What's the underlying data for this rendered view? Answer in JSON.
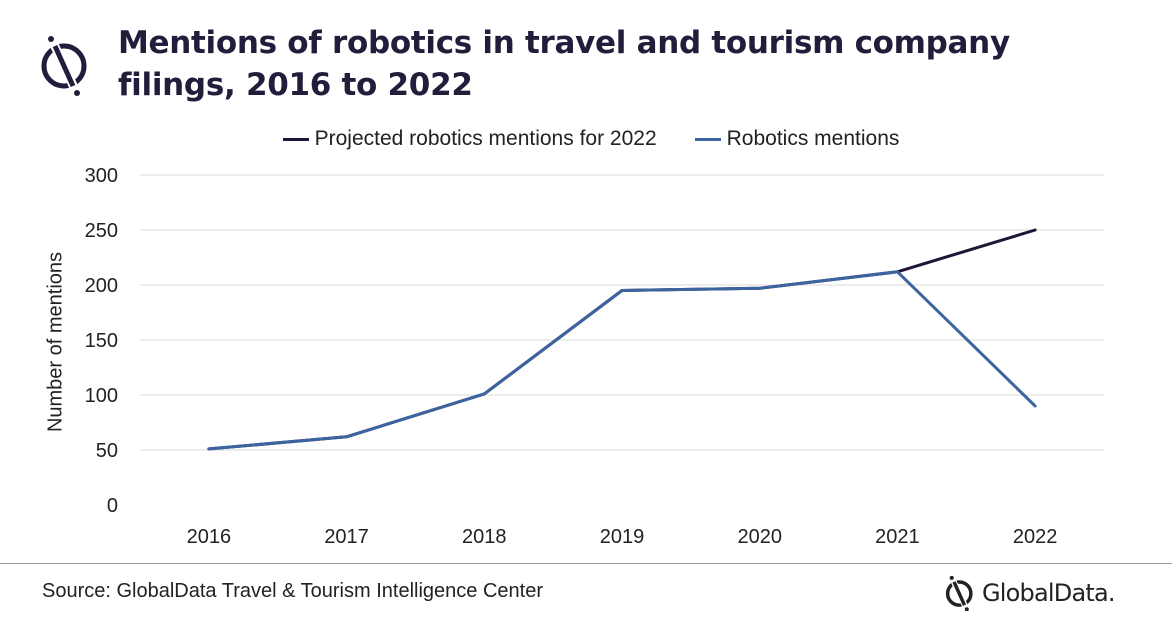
{
  "header": {
    "title": "Mentions of robotics in travel and tourism company filings, 2016 to 2022",
    "logo_icon": "globaldata-mark-icon"
  },
  "footer": {
    "source": "Source: GlobalData Travel & Tourism Intelligence Center",
    "brand": "GlobalData."
  },
  "colors": {
    "title": "#221d3b",
    "projected": "#1f1536",
    "actual": "#3c64a0",
    "grid": "#d9d9d9"
  },
  "chart_data": {
    "type": "line",
    "categories": [
      "2016",
      "2017",
      "2018",
      "2019",
      "2020",
      "2021",
      "2022"
    ],
    "series": [
      {
        "name": "Projected robotics mentions for 2022",
        "values": [
          51,
          62,
          101,
          195,
          197,
          212,
          250
        ],
        "color": "#1f1536"
      },
      {
        "name": "Robotics mentions",
        "values": [
          51,
          62,
          101,
          195,
          197,
          212,
          90
        ],
        "color": "#3c64a0"
      }
    ],
    "ylabel": "Number of mentions",
    "xlabel": "",
    "ylim": [
      0,
      300
    ],
    "yticks": [
      "0",
      "50",
      "100",
      "150",
      "200",
      "250",
      "300"
    ],
    "grid": true,
    "legend_position": "top"
  }
}
